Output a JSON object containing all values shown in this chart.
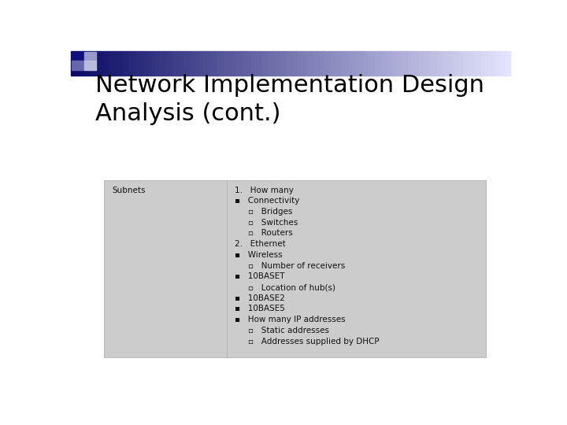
{
  "title_line1": "Network Implementation Design",
  "title_line2": "Analysis (cont.)",
  "title_fontsize": 22,
  "title_color": "#000000",
  "bg_color": "#ffffff",
  "table_bg": "#cccccc",
  "table_border": "#aaaaaa",
  "left_col_text": "Subnets",
  "content_lines": [
    {
      "text": "1.   How many",
      "indent": 0
    },
    {
      "text": "▪   Connectivity",
      "indent": 0
    },
    {
      "text": "▫   Bridges",
      "indent": 1
    },
    {
      "text": "▫   Switches",
      "indent": 1
    },
    {
      "text": "▫   Routers",
      "indent": 1
    },
    {
      "text": "2.   Ethernet",
      "indent": 0
    },
    {
      "text": "▪   Wireless",
      "indent": 0
    },
    {
      "text": "▫   Number of receivers",
      "indent": 1
    },
    {
      "text": "▪   10BASET",
      "indent": 0
    },
    {
      "text": "▫   Location of hub(s)",
      "indent": 1
    },
    {
      "text": "▪   10BASE2",
      "indent": 0
    },
    {
      "text": "▪   10BASE5",
      "indent": 0
    },
    {
      "text": "▪   How many IP addresses",
      "indent": 0
    },
    {
      "text": "▫   Static addresses",
      "indent": 1
    },
    {
      "text": "▫   Addresses supplied by DHCP",
      "indent": 1
    }
  ],
  "content_fontsize": 7.5,
  "indent_step": 0.03
}
